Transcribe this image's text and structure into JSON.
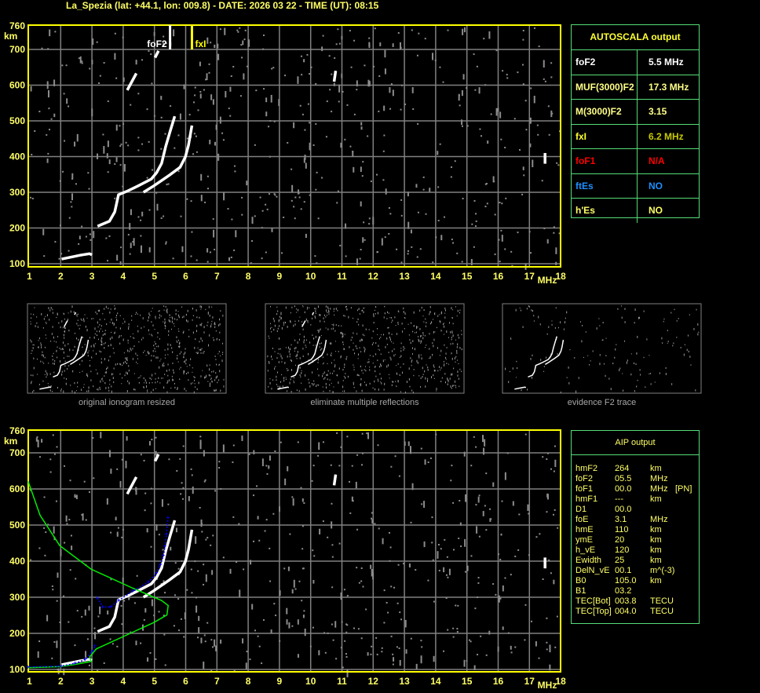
{
  "title": "La_Spezia (lat: +44.1, lon: 009.8) - DATE: 2026 03 22 - TIME (UT): 08:15",
  "autoscala": {
    "header": "AUTOSCALA output",
    "rows": [
      {
        "label": "foF2",
        "value": "5.5 MHz",
        "label_color": "#ffffff",
        "value_color": "#ffffff"
      },
      {
        "label": "MUF(3000)F2",
        "value": "17.3 MHz",
        "label_color": "#ffff88",
        "value_color": "#ffff88"
      },
      {
        "label": "M(3000)F2",
        "value": "3.15",
        "label_color": "#ffff88",
        "value_color": "#ffff88"
      },
      {
        "label": "fxI",
        "value": "6.2 MHz",
        "label_color": "#ffff33",
        "value_color": "#c8c800"
      },
      {
        "label": "foF1",
        "value": "N/A",
        "label_color": "#ff0000",
        "value_color": "#ff0000"
      },
      {
        "label": "ftEs",
        "value": "NO",
        "label_color": "#1e8fff",
        "value_color": "#1e8fff"
      },
      {
        "label": "h'Es",
        "value": "NO",
        "label_color": "#ffff66",
        "value_color": "#ffff66"
      }
    ]
  },
  "aip": {
    "header": "AIP output",
    "rows": [
      [
        "hmF2",
        "264",
        "km",
        ""
      ],
      [
        "foF2",
        "05.5",
        "MHz",
        ""
      ],
      [
        "foF1",
        "00.0",
        "MHz",
        "[PN]"
      ],
      [
        "hmF1",
        "---",
        "km",
        ""
      ],
      [
        "D1",
        "00.0",
        "",
        ""
      ],
      [
        "foE",
        "3.1",
        "MHz",
        ""
      ],
      [
        "hmE",
        "110",
        "km",
        ""
      ],
      [
        "ymE",
        "20",
        "km",
        ""
      ],
      [
        "h_vE",
        "120",
        "km",
        ""
      ],
      [
        "Ewidth",
        "25",
        "km",
        ""
      ],
      [
        "DelN_vE",
        "00.1",
        "m^(-3)",
        ""
      ],
      [
        "B0",
        "105.0",
        "km",
        ""
      ],
      [
        "B1",
        "03.2",
        "",
        ""
      ],
      [
        "TEC[Bot]",
        "003.8",
        "TECU",
        ""
      ],
      [
        "TEC[Top]",
        "004.0",
        "TECU",
        ""
      ]
    ]
  },
  "thumbnails": [
    {
      "caption": "original ionogram resized"
    },
    {
      "caption": "eliminate multiple reflections"
    },
    {
      "caption": "evidence F2 trace"
    }
  ],
  "chart_data": [
    {
      "type": "scatter",
      "panel": "top ionogram",
      "xlabel": "MHz",
      "ylabel": "km",
      "xlim": [
        1,
        18
      ],
      "ylim": [
        100,
        760
      ],
      "x_ticks": [
        "1",
        "2",
        "3",
        "4",
        "5",
        "6",
        "7",
        "8",
        "9",
        "10",
        "11",
        "12",
        "13",
        "14",
        "15",
        "16",
        "17",
        "18"
      ],
      "y_ticks": [
        "760",
        "700",
        "600",
        "500",
        "400",
        "300",
        "200",
        "100"
      ],
      "grid": true,
      "markers": [
        {
          "label": "foF2",
          "x": 5.5,
          "color": "#ffffff"
        },
        {
          "label": "fxI",
          "x": 6.2,
          "color": "#ffff00"
        }
      ],
      "traces": [
        {
          "kind": "echo",
          "color": "#ffffff",
          "points": [
            [
              2.03,
              113
            ],
            [
              2.64,
              124
            ],
            [
              2.92,
              128
            ],
            [
              3.0,
              125
            ]
          ]
        },
        {
          "kind": "echo",
          "color": "#ffffff",
          "points": [
            [
              3.18,
              205
            ],
            [
              3.56,
              219
            ],
            [
              3.73,
              245
            ],
            [
              3.85,
              293
            ],
            [
              4.15,
              304
            ],
            [
              4.48,
              318
            ],
            [
              4.9,
              337
            ],
            [
              5.07,
              355
            ],
            [
              5.23,
              381
            ],
            [
              5.36,
              428
            ],
            [
              5.5,
              470
            ],
            [
              5.65,
              513
            ]
          ]
        },
        {
          "kind": "echo",
          "color": "#ffffff",
          "points": [
            [
              4.65,
              300
            ],
            [
              4.98,
              318
            ],
            [
              5.48,
              348
            ],
            [
              5.82,
              370
            ],
            [
              5.99,
              399
            ],
            [
              6.09,
              432
            ],
            [
              6.2,
              487
            ]
          ]
        },
        {
          "kind": "echo",
          "color": "#ffffff",
          "points": [
            [
              4.13,
              586
            ],
            [
              4.42,
              633
            ]
          ]
        },
        {
          "kind": "echo",
          "color": "#ffffff",
          "points": [
            [
              5.02,
              677
            ],
            [
              5.13,
              696
            ]
          ]
        },
        {
          "kind": "echo",
          "color": "#ffffff",
          "points": [
            [
              10.75,
              610
            ],
            [
              10.8,
              640
            ]
          ]
        },
        {
          "kind": "echo",
          "color": "#ffffff",
          "points": [
            [
              17.5,
              380
            ],
            [
              17.5,
              410
            ]
          ]
        }
      ]
    },
    {
      "type": "line",
      "panel": "bottom ionogram with AIP profile",
      "xlabel": "MHz",
      "ylabel": "km",
      "xlim": [
        1,
        18
      ],
      "ylim": [
        100,
        760
      ],
      "x_ticks": [
        "1",
        "2",
        "3",
        "4",
        "5",
        "6",
        "7",
        "8",
        "9",
        "10",
        "11",
        "12",
        "13",
        "14",
        "15",
        "16",
        "17",
        "18"
      ],
      "y_ticks": [
        "760",
        "700",
        "600",
        "500",
        "400",
        "300",
        "200",
        "100"
      ],
      "grid": true,
      "traces": [
        {
          "kind": "echo",
          "color": "#ffffff",
          "points": [
            [
              2.03,
              113
            ],
            [
              2.64,
              124
            ],
            [
              2.92,
              128
            ],
            [
              3.0,
              125
            ]
          ]
        },
        {
          "kind": "echo",
          "color": "#ffffff",
          "points": [
            [
              3.18,
              205
            ],
            [
              3.56,
              219
            ],
            [
              3.73,
              245
            ],
            [
              3.85,
              293
            ],
            [
              4.15,
              304
            ],
            [
              4.48,
              318
            ],
            [
              4.9,
              337
            ],
            [
              5.07,
              355
            ],
            [
              5.23,
              381
            ],
            [
              5.36,
              428
            ],
            [
              5.5,
              470
            ],
            [
              5.65,
              513
            ]
          ]
        },
        {
          "kind": "echo",
          "color": "#ffffff",
          "points": [
            [
              4.65,
              300
            ],
            [
              4.98,
              318
            ],
            [
              5.48,
              348
            ],
            [
              5.82,
              370
            ],
            [
              5.99,
              399
            ],
            [
              6.09,
              432
            ],
            [
              6.2,
              487
            ]
          ]
        },
        {
          "kind": "echo",
          "color": "#ffffff",
          "points": [
            [
              4.13,
              586
            ],
            [
              4.42,
              633
            ]
          ]
        },
        {
          "kind": "echo",
          "color": "#ffffff",
          "points": [
            [
              5.02,
              677
            ],
            [
              5.13,
              696
            ]
          ]
        },
        {
          "kind": "echo",
          "color": "#ffffff",
          "points": [
            [
              10.75,
              610
            ],
            [
              10.8,
              640
            ]
          ]
        },
        {
          "kind": "echo",
          "color": "#ffffff",
          "points": [
            [
              17.5,
              380
            ],
            [
              17.5,
              410
            ]
          ]
        },
        {
          "kind": "profile",
          "color": "#00ee00",
          "points": [
            [
              0.96,
              621
            ],
            [
              1.34,
              527
            ],
            [
              1.97,
              443
            ],
            [
              2.97,
              378
            ],
            [
              4.31,
              325
            ],
            [
              5.23,
              291
            ],
            [
              5.44,
              277
            ],
            [
              5.4,
              251
            ],
            [
              4.98,
              230
            ],
            [
              4.15,
              197
            ],
            [
              3.14,
              157
            ],
            [
              2.93,
              135
            ],
            [
              2.97,
              122
            ],
            [
              2.47,
              114
            ],
            [
              1.97,
              108
            ],
            [
              0.96,
              105
            ]
          ]
        },
        {
          "kind": "computed-trace",
          "color": "#0000ff",
          "points": [
            [
              0.96,
              107
            ],
            [
              2.0,
              109
            ],
            [
              2.47,
              117
            ],
            [
              2.8,
              128
            ],
            [
              3.01,
              150
            ],
            [
              3.1,
              165
            ]
          ]
        },
        {
          "kind": "computed-trace",
          "color": "#0000ff",
          "points": [
            [
              3.18,
              298
            ],
            [
              3.35,
              273
            ],
            [
              3.6,
              273
            ],
            [
              3.85,
              291
            ],
            [
              4.31,
              317
            ],
            [
              4.81,
              342
            ],
            [
              5.07,
              367
            ],
            [
              5.19,
              389
            ],
            [
              5.29,
              415
            ],
            [
              5.34,
              441
            ],
            [
              5.38,
              474
            ],
            [
              5.44,
              521
            ]
          ]
        }
      ]
    }
  ]
}
